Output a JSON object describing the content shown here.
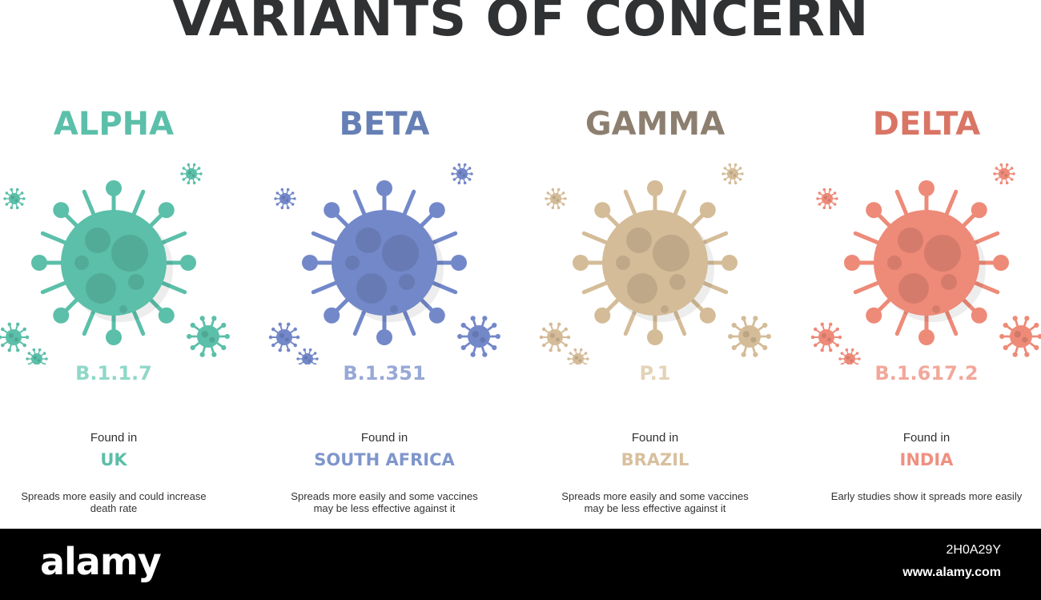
{
  "title": "VARIANTS OF CONCERN",
  "variants": [
    {
      "name": "ALPHA",
      "code": "B.1.1.7",
      "found_label": "Found in",
      "country": "UK",
      "description": "Spreads more easily and could increase death rate",
      "color": "#5bbfa9",
      "icon": "virus-icon"
    },
    {
      "name": "BETA",
      "code": "B.1.351",
      "found_label": "Found in",
      "country": "SOUTH AFRICA",
      "description": "Spreads more easily and some vaccines may be less effective against it",
      "color": "#7388c9",
      "icon": "virus-icon"
    },
    {
      "name": "GAMMA",
      "code": "P.1",
      "found_label": "Found in",
      "country": "BRAZIL",
      "description": "Spreads more easily and some vaccines may be less effective against it",
      "color": "#d4bc98",
      "icon": "virus-icon"
    },
    {
      "name": "DELTA",
      "code": "B.1.617.2",
      "found_label": "Found in",
      "country": "INDIA",
      "description": "Early studies show it spreads more easily",
      "color": "#ee8a78",
      "icon": "virus-icon"
    }
  ],
  "heading_colors": [
    "#5bbfa9",
    "#6680b5",
    "#8d7f70",
    "#d97565"
  ],
  "code_colors": [
    "#8fd8c8",
    "#98a8d6",
    "#e4d3b7",
    "#f2a89a"
  ],
  "country_colors": [
    "#5bbfa9",
    "#7f96cc",
    "#d8c09e",
    "#f09080"
  ],
  "footer": {
    "logo": "alamy",
    "image_id": "2H0A29Y",
    "site": "www.alamy.com"
  }
}
